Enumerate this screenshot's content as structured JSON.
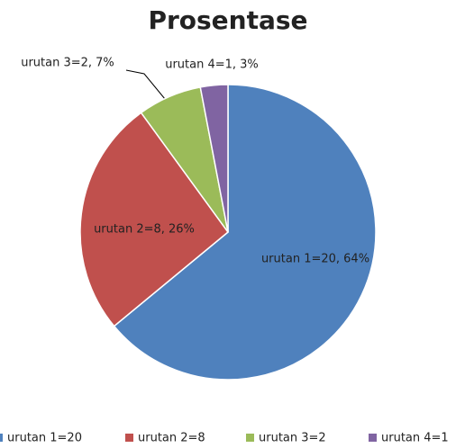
{
  "chart_data": {
    "type": "pie",
    "title": "Prosentase",
    "categories": [
      "urutan 1=20",
      "urutan 2=8",
      "urutan 3=2",
      "urutan 4=1"
    ],
    "values": [
      64,
      26,
      7,
      3
    ],
    "value_labels": [
      "urutan 1=20, 64%",
      "urutan 2=8, 26%",
      "urutan 3=2, 7%",
      "urutan 4=1, 3%"
    ],
    "colors": [
      "#4f81bd",
      "#c0504d",
      "#9bbb59",
      "#8064a2"
    ],
    "legend": "bottom"
  }
}
